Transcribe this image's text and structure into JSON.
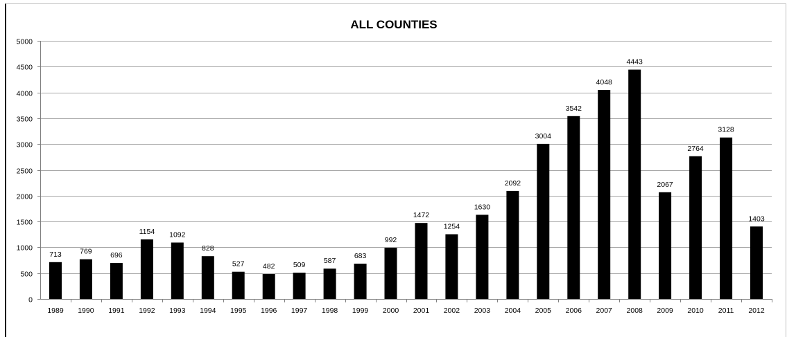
{
  "chart_data": {
    "type": "bar",
    "title": "ALL COUNTIES",
    "xlabel": "",
    "ylabel": "",
    "categories": [
      "1989",
      "1990",
      "1991",
      "1992",
      "1993",
      "1994",
      "1995",
      "1996",
      "1997",
      "1998",
      "1999",
      "2000",
      "2001",
      "2002",
      "2003",
      "2004",
      "2005",
      "2006",
      "2007",
      "2008",
      "2009",
      "2010",
      "2011",
      "2012"
    ],
    "values": [
      713,
      769,
      696,
      1154,
      1092,
      828,
      527,
      482,
      509,
      587,
      683,
      992,
      1472,
      1254,
      1630,
      2092,
      3004,
      3542,
      4048,
      4443,
      2067,
      2764,
      3128,
      1403
    ],
    "ylim": [
      0,
      5000
    ],
    "yticks": [
      0,
      500,
      1000,
      1500,
      2000,
      2500,
      3000,
      3500,
      4000,
      4500,
      5000
    ],
    "grid": true,
    "legend": "none",
    "bar_color": "#000000",
    "gridline_color": "#a6a6a6"
  }
}
